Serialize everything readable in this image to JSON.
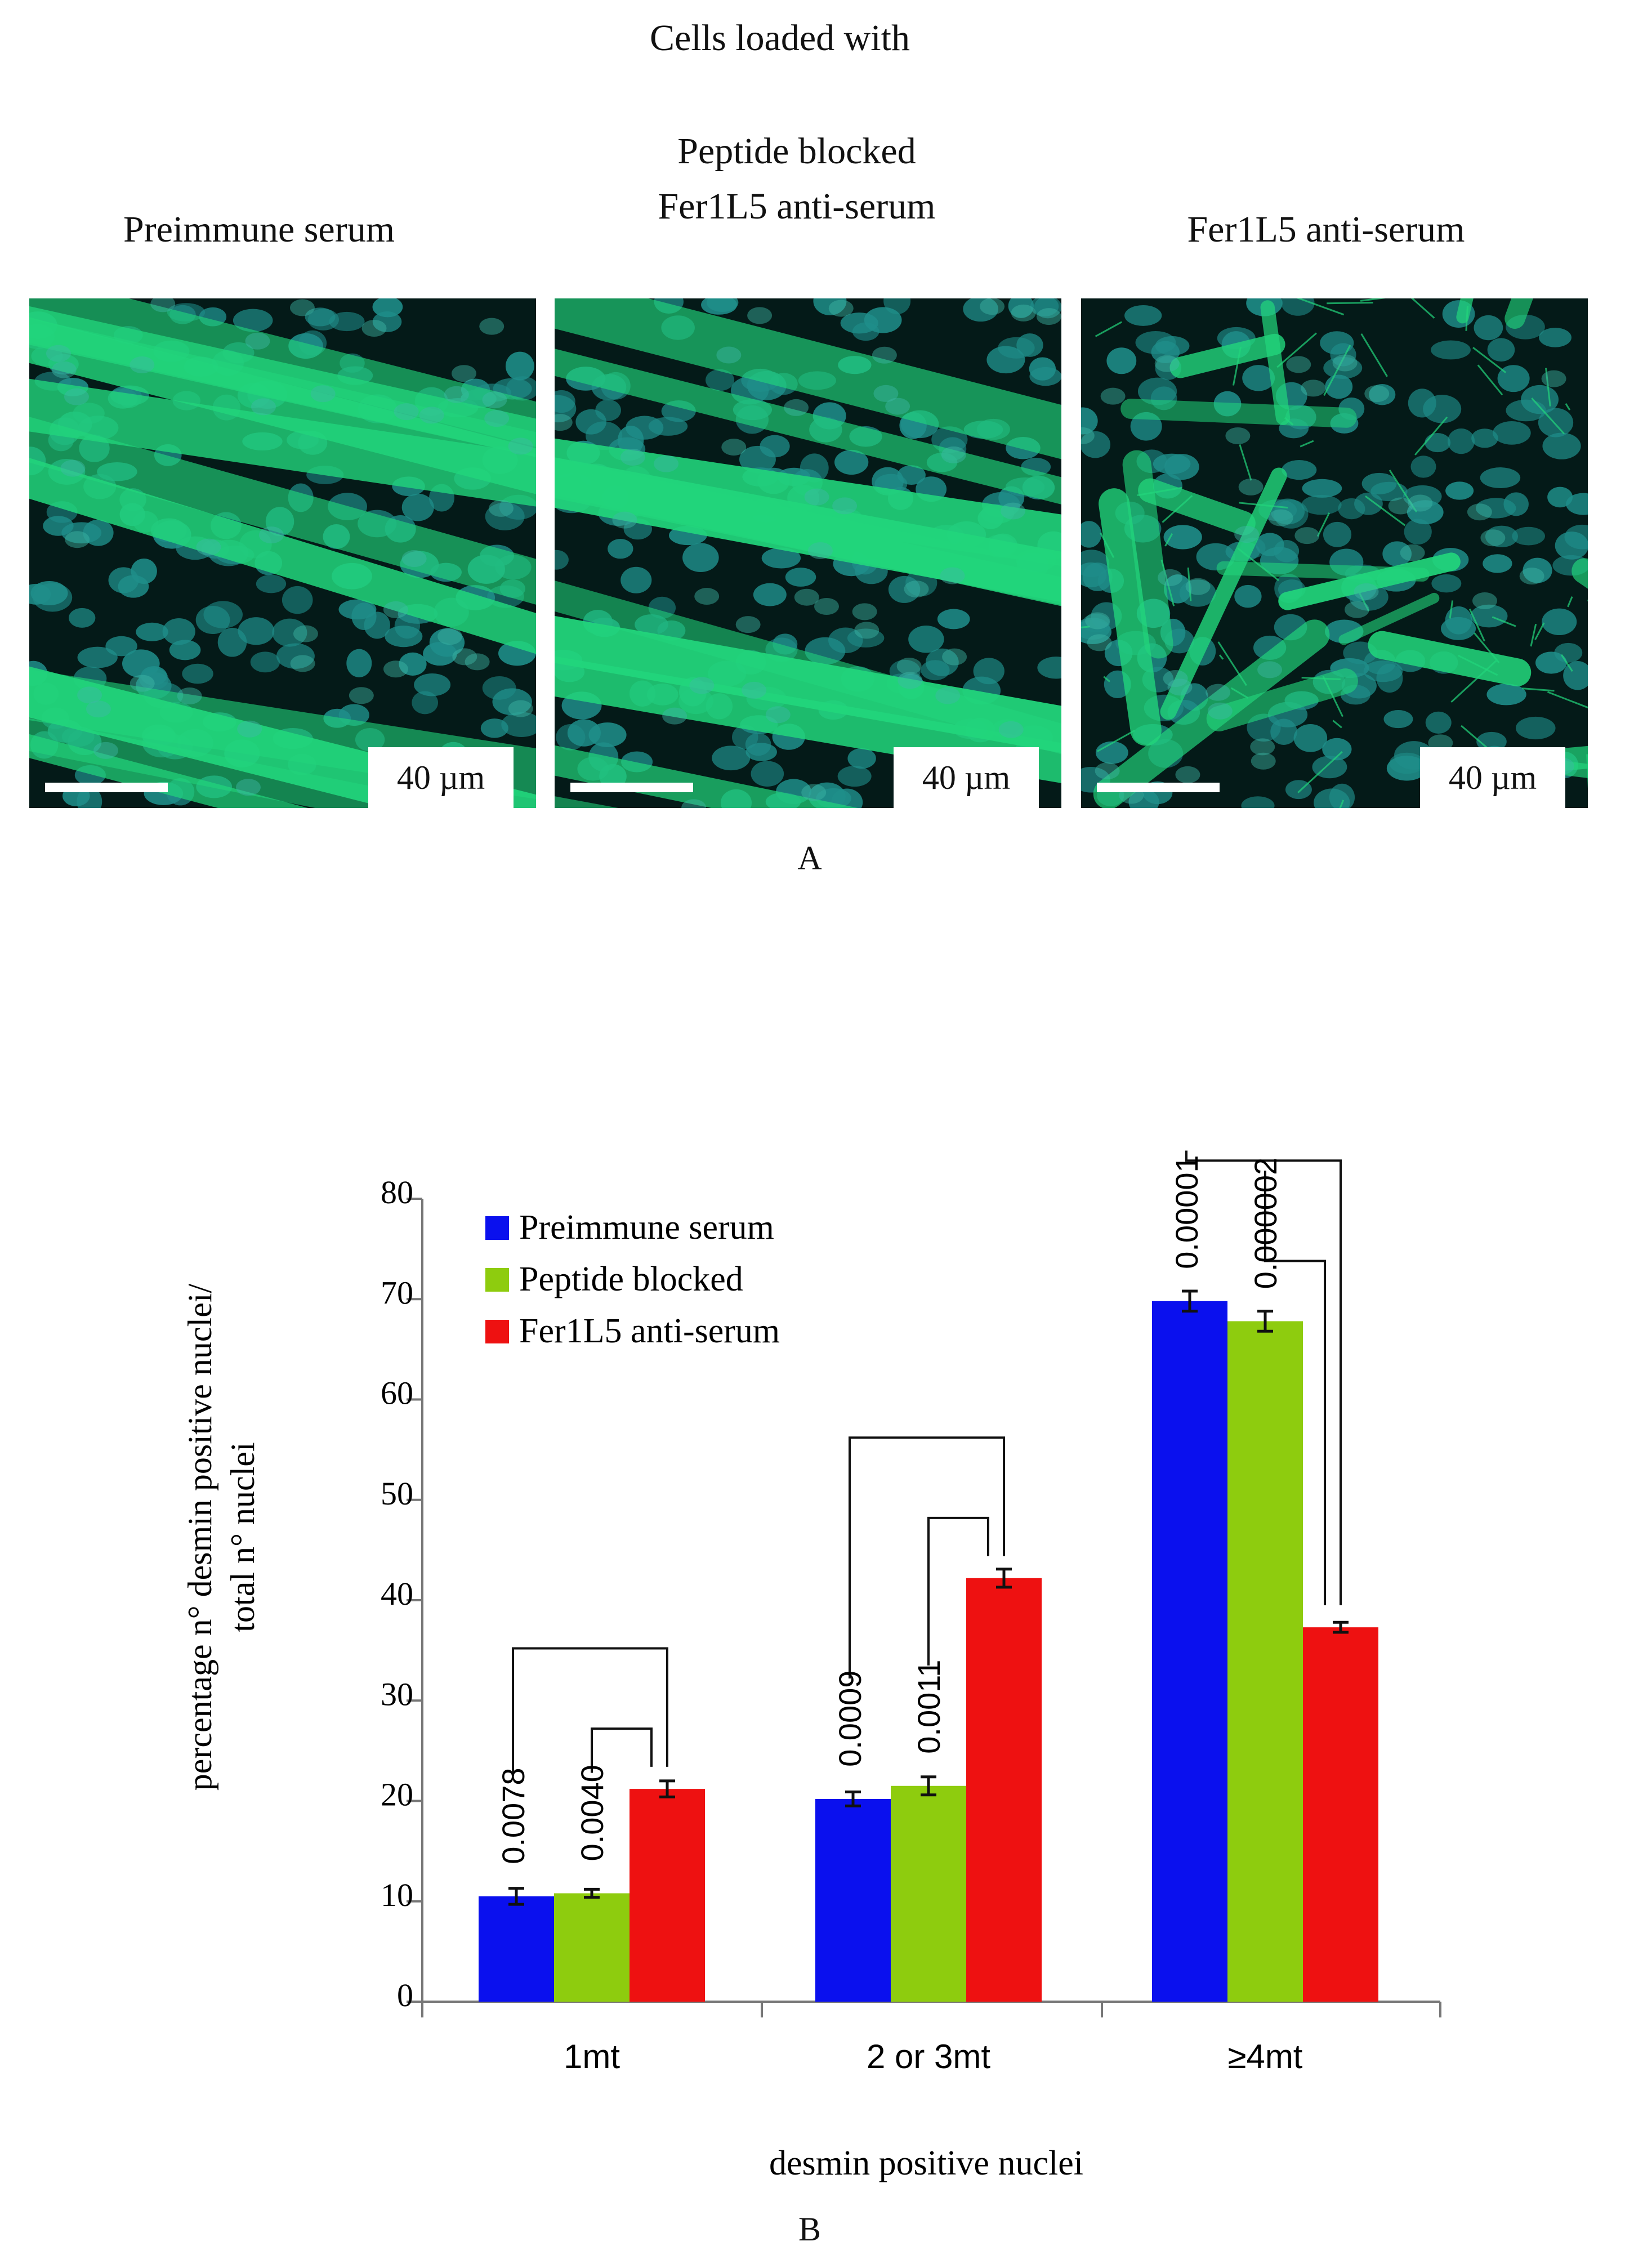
{
  "panel_a": {
    "header": "Cells loaded with",
    "columns": [
      {
        "title_lines": [
          "Preimmune serum"
        ]
      },
      {
        "title_lines": [
          "Peptide blocked",
          "Fer1L5 anti-serum"
        ]
      },
      {
        "title_lines": [
          "Fer1L5 anti-serum"
        ]
      }
    ],
    "scale_label": "40 µm",
    "label": "A"
  },
  "panel_b_label": "B",
  "colors": {
    "blue": "#0a10ee",
    "green": "#8ecc0e",
    "red": "#ee1111",
    "fiber": "#22d67c",
    "nucleus": "#1f8e8a"
  },
  "chart_data": {
    "type": "bar",
    "categories": [
      "1mt",
      "2 or 3mt",
      "≥4mt"
    ],
    "series": [
      {
        "name": "Preimmune serum",
        "color": "#0a10ee",
        "values": [
          10.5,
          20.2,
          69.8
        ],
        "errors": [
          0.8,
          0.7,
          1.0
        ]
      },
      {
        "name": "Peptide blocked",
        "color": "#8ecc0e",
        "values": [
          10.8,
          21.5,
          67.8
        ],
        "errors": [
          0.4,
          0.9,
          1.0
        ]
      },
      {
        "name": "Fer1L5 anti-serum",
        "color": "#ee1111",
        "values": [
          21.2,
          42.2,
          37.3
        ],
        "errors": [
          0.8,
          0.9,
          0.5
        ]
      }
    ],
    "ylim": [
      0,
      80
    ],
    "yticks": [
      0,
      10,
      20,
      30,
      40,
      50,
      60,
      70,
      80
    ],
    "ylabel": [
      "percentage n° desmin positive nuclei/",
      "total n° nuclei"
    ],
    "xlabel": "desmin positive nuclei",
    "legend_position": "top-left",
    "annotations": [
      {
        "category": 0,
        "from_series": 0,
        "to_series": 2,
        "p": "0.0078"
      },
      {
        "category": 0,
        "from_series": 1,
        "to_series": 2,
        "p": "0.0040"
      },
      {
        "category": 1,
        "from_series": 0,
        "to_series": 2,
        "p": "0.0009"
      },
      {
        "category": 1,
        "from_series": 1,
        "to_series": 2,
        "p": "0.0011"
      },
      {
        "category": 2,
        "from_series": 0,
        "to_series": 2,
        "p": "0.00001"
      },
      {
        "category": 2,
        "from_series": 1,
        "to_series": 2,
        "p": "0.000002"
      }
    ]
  }
}
